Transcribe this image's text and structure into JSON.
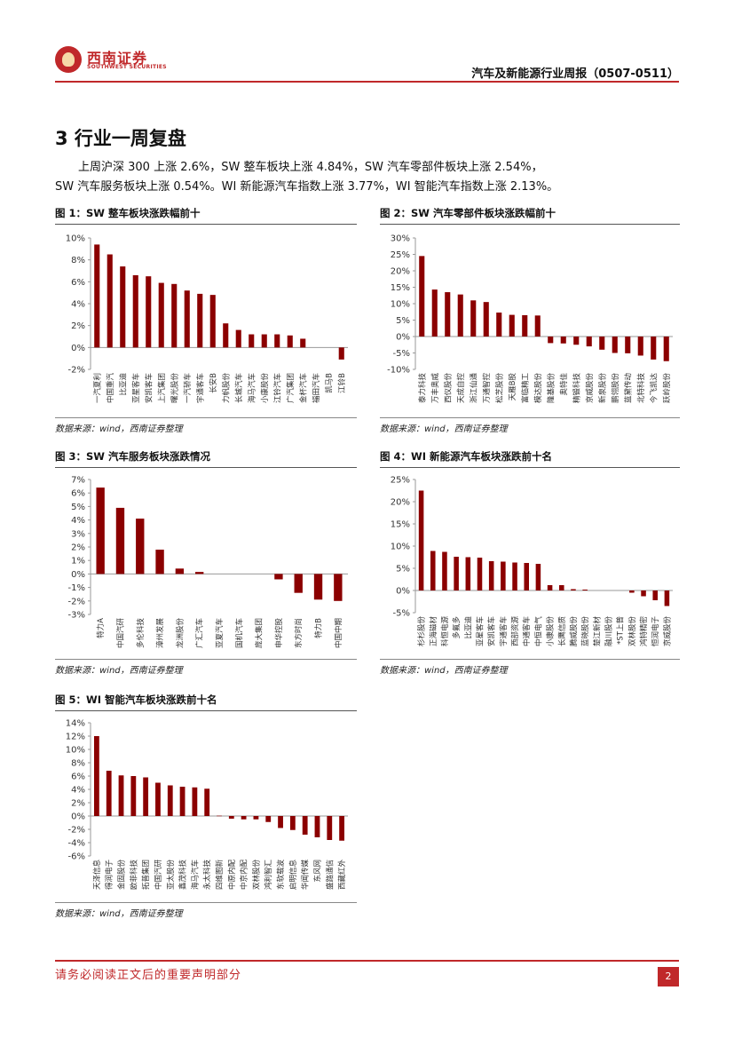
{
  "header": {
    "logo_cn": "西南证券",
    "logo_en": "SOUTHWEST SECURITIES",
    "report_title": "汽车及新能源行业周报（0507-0511）"
  },
  "section": {
    "title": "3 行业一周复盘",
    "para_line1": "上周沪深 300 上涨 2.6%，SW 整车板块上涨 4.84%，SW 汽车零部件板块上涨 2.54%，",
    "para_line2": "SW 汽车服务板块上涨 0.54%。WI 新能源汽车指数上涨 3.77%，WI 智能汽车指数上涨 2.13%。"
  },
  "colors": {
    "bar": "#8b0000",
    "accent": "#c0282a"
  },
  "footer": {
    "disclaimer": "请务必阅读正文后的重要声明部分",
    "page": "2"
  },
  "chart_data": [
    {
      "type": "bar",
      "title": "图 1：SW 整车板块涨跌幅前十",
      "source": "数据来源：wind，西南证券整理",
      "categories": [
        "一汽夏利",
        "中国重汽",
        "比亚迪",
        "亚星客车",
        "安凯客车",
        "上汽集团",
        "曙光股份",
        "一汽轿车",
        "宇通客车",
        "长安B",
        "力帆股份",
        "长城汽车",
        "海马汽车",
        "小康股份",
        "江铃汽车",
        "广汽集团",
        "金杯汽车",
        "福田汽车",
        "凯马B",
        "江铃B"
      ],
      "values": [
        9.4,
        8.5,
        7.4,
        6.6,
        6.5,
        5.9,
        5.8,
        5.2,
        4.9,
        4.8,
        2.2,
        1.6,
        1.2,
        1.2,
        1.2,
        1.1,
        0.8,
        0.0,
        0.0,
        -1.1
      ],
      "ylim": [
        -2,
        10
      ],
      "yticks": [
        -2,
        0,
        2,
        4,
        6,
        8,
        10
      ],
      "ytick_labels": [
        "-2%",
        "0%",
        "2%",
        "4%",
        "6%",
        "8%",
        "10%"
      ]
    },
    {
      "type": "bar",
      "title": "图 2：SW 汽车零部件板块涨跌幅前十",
      "source": "数据来源：wind，西南证券整理",
      "categories": [
        "泰力科技",
        "万丰奥威",
        "西仪股份",
        "天成自控",
        "浙江仙通",
        "万通智控",
        "松芝股份",
        "天雁B股",
        "富临精工",
        "模达股份",
        "隆基股份",
        "奥特佳",
        "精锻科技",
        "京威股份",
        "新泉股份",
        "鹏翎股份",
        "蓝黛传动",
        "北特科技",
        "今飞凯达",
        "跃岭股份"
      ],
      "values": [
        24.5,
        14.3,
        13.5,
        12.8,
        11.0,
        10.5,
        7.3,
        6.6,
        6.5,
        6.4,
        -2.0,
        -2.1,
        -2.5,
        -3.0,
        -4.0,
        -5.0,
        -5.1,
        -5.8,
        -7.0,
        -7.5
      ],
      "ylim": [
        -10,
        30
      ],
      "yticks": [
        -10,
        -5,
        0,
        5,
        10,
        15,
        20,
        25,
        30
      ],
      "ytick_labels": [
        "-10%",
        "-5%",
        "0%",
        "5%",
        "10%",
        "15%",
        "20%",
        "25%",
        "30%"
      ]
    },
    {
      "type": "bar",
      "title": "图 3：SW 汽车服务板块涨跌情况",
      "source": "数据来源：wind，西南证券整理",
      "categories": [
        "特力A",
        "中国汽研",
        "多伦科技",
        "漳州发展",
        "龙洲股份",
        "广汇汽车",
        "亚夏汽车",
        "国机汽车",
        "庞大集团",
        "申华控股",
        "东方时尚",
        "特力B",
        "中国中期"
      ],
      "values": [
        6.4,
        4.9,
        4.1,
        1.8,
        0.4,
        0.15,
        0.0,
        0.0,
        0.0,
        -0.4,
        -1.4,
        -1.9,
        -2.0
      ],
      "ylim": [
        -3,
        7
      ],
      "yticks": [
        -3,
        -2,
        -1,
        0,
        1,
        2,
        3,
        4,
        5,
        6,
        7
      ],
      "ytick_labels": [
        "-3%",
        "-2%",
        "-1%",
        "0%",
        "1%",
        "2%",
        "3%",
        "4%",
        "5%",
        "6%",
        "7%"
      ]
    },
    {
      "type": "bar",
      "title": "图 4：WI 新能源汽车板块涨跌前十名",
      "source": "数据来源：wind，西南证券整理",
      "categories": [
        "杉杉股份",
        "正海磁材",
        "科恒电源",
        "多氟多",
        "比亚迪",
        "亚星客车",
        "安凯客车",
        "宇通客车",
        "西部资源",
        "中通客车",
        "中恒电气",
        "小康股份",
        "长鹰信质",
        "腾威股份",
        "蓝晓股份",
        "楚江新材",
        "融川股份",
        "*ST上普",
        "双林股份",
        "鸿特精密",
        "恒润电子",
        "京威股份"
      ],
      "values": [
        22.5,
        8.9,
        8.7,
        7.6,
        7.5,
        7.4,
        6.6,
        6.5,
        6.3,
        6.2,
        6.0,
        1.2,
        1.2,
        0.3,
        0.2,
        0.0,
        0.0,
        0.0,
        -0.5,
        -1.3,
        -2.2,
        -3.5
      ],
      "ylim": [
        -5,
        25
      ],
      "yticks": [
        -5,
        0,
        5,
        10,
        15,
        20,
        25
      ],
      "ytick_labels": [
        "-5%",
        "0%",
        "5%",
        "10%",
        "15%",
        "20%",
        "25%"
      ]
    },
    {
      "type": "bar",
      "title": "图 5：WI 智能汽车板块涨跌前十名",
      "source": "数据来源：wind，西南证券整理",
      "categories": [
        "天泽信息",
        "得润电子",
        "金固股份",
        "欧菲科技",
        "拓普集团",
        "中国汽研",
        "亚太股份",
        "鑫茂科技",
        "海马汽车",
        "永太科技",
        "四维图新",
        "中原内配",
        "中京内配",
        "双林股份",
        "鸿利智汇",
        "东软载波",
        "启明信息",
        "华闻传媒",
        "东风网",
        "盛路通信",
        "西藏红外"
      ],
      "values": [
        12.0,
        6.8,
        6.1,
        6.0,
        5.8,
        5.0,
        4.6,
        4.4,
        4.3,
        4.1,
        0.05,
        -0.4,
        -0.5,
        -0.5,
        -0.9,
        -1.8,
        -2.1,
        -2.8,
        -3.2,
        -3.6,
        -3.7
      ],
      "ylim": [
        -6,
        14
      ],
      "yticks": [
        -6,
        -4,
        -2,
        0,
        2,
        4,
        6,
        8,
        10,
        12,
        14
      ],
      "ytick_labels": [
        "-6%",
        "-4%",
        "-2%",
        "0%",
        "2%",
        "4%",
        "6%",
        "8%",
        "10%",
        "12%",
        "14%"
      ]
    }
  ]
}
